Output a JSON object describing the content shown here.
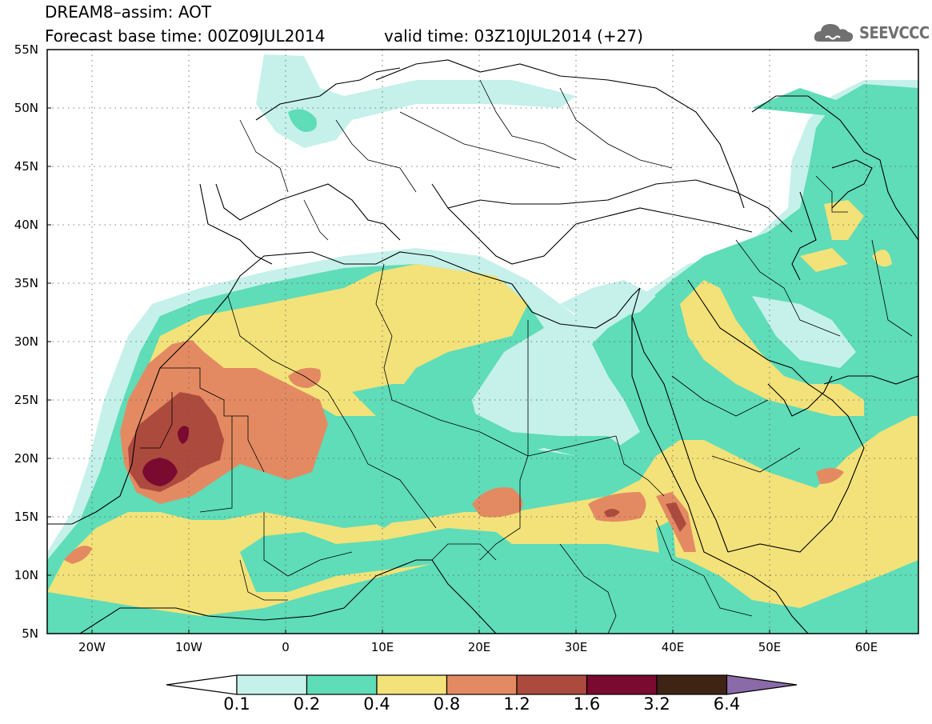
{
  "header": {
    "title": "DREAM8–assim: AOT",
    "base_time": "Forecast base time: 00Z09JUL2014",
    "valid_time": "valid time: 03Z10JUL2014 (+27)"
  },
  "logo": {
    "text": "SEEVCCC",
    "icon": "cloud-icon",
    "color": "#707070"
  },
  "map": {
    "lat_labels": [
      "55N",
      "50N",
      "45N",
      "40N",
      "35N",
      "30N",
      "25N",
      "20N",
      "15N",
      "10N",
      "5N"
    ],
    "lon_labels": [
      "20W",
      "10W",
      "0",
      "10E",
      "20E",
      "30E",
      "40E",
      "50E",
      "60E"
    ],
    "lon_range": [
      -25,
      65
    ],
    "lat_range": [
      5,
      55
    ],
    "grid": true
  },
  "legend": {
    "levels": [
      "0.1",
      "0.2",
      "0.4",
      "0.8",
      "1.2",
      "1.6",
      "3.2",
      "6.4"
    ],
    "colors": [
      "#ffffff",
      "#c5f1ea",
      "#5fdcb8",
      "#f3e27a",
      "#e48a62",
      "#ad4a3e",
      "#7a0a2f",
      "#3f2416",
      "#8a6aa8"
    ]
  }
}
